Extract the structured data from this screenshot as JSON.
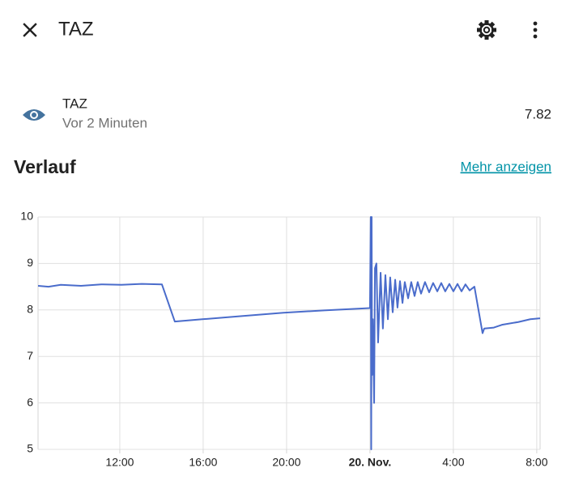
{
  "header": {
    "title": "TAZ"
  },
  "entity": {
    "name": "TAZ",
    "last_changed": "Vor 2 Minuten",
    "state": "7.82"
  },
  "history": {
    "title": "Verlauf",
    "link": "Mehr anzeigen"
  },
  "chart_data": {
    "type": "line",
    "color": "#4a6ccb",
    "grid": true,
    "x": [
      8.08,
      8.58,
      9.17,
      10.14,
      11.11,
      12.08,
      13.05,
      14.02,
      14.64,
      15.96,
      17.91,
      19.85,
      21.79,
      24.0,
      24.04,
      24.06,
      24.08,
      24.1,
      24.14,
      24.2,
      24.24,
      24.31,
      24.39,
      24.51,
      24.62,
      24.74,
      24.86,
      24.97,
      25.09,
      25.21,
      25.32,
      25.44,
      25.56,
      25.67,
      25.83,
      25.98,
      26.14,
      26.29,
      26.45,
      26.64,
      26.84,
      27.03,
      27.23,
      27.42,
      27.61,
      27.81,
      28.0,
      28.2,
      28.39,
      28.58,
      28.78,
      29.01,
      29.4,
      29.48,
      29.94,
      30.33,
      31.11,
      31.69,
      32.16
    ],
    "values": [
      8.52,
      8.5,
      8.54,
      8.52,
      8.55,
      8.54,
      8.56,
      8.55,
      7.75,
      7.8,
      7.87,
      7.94,
      7.99,
      8.04,
      10,
      5,
      10,
      6.6,
      7.8,
      6.0,
      8.9,
      9.0,
      7.3,
      8.8,
      7.6,
      8.75,
      7.8,
      8.7,
      7.95,
      8.65,
      8.05,
      8.62,
      8.15,
      8.6,
      8.25,
      8.6,
      8.3,
      8.6,
      8.35,
      8.6,
      8.38,
      8.58,
      8.4,
      8.58,
      8.4,
      8.56,
      8.4,
      8.56,
      8.4,
      8.55,
      8.42,
      8.5,
      7.5,
      7.6,
      7.62,
      7.68,
      7.74,
      7.8,
      7.82
    ],
    "xlim": [
      8.08,
      32.16
    ],
    "xticks": [
      {
        "value": 12,
        "label": "12:00"
      },
      {
        "value": 16,
        "label": "16:00"
      },
      {
        "value": 20,
        "label": "20:00"
      },
      {
        "value": 24,
        "label": "20. Nov."
      },
      {
        "value": 28,
        "label": "4:00"
      },
      {
        "value": 32,
        "label": "8:00"
      }
    ],
    "ylim": [
      5,
      10
    ],
    "yticks": [
      5,
      6,
      7,
      8,
      9,
      10
    ]
  }
}
